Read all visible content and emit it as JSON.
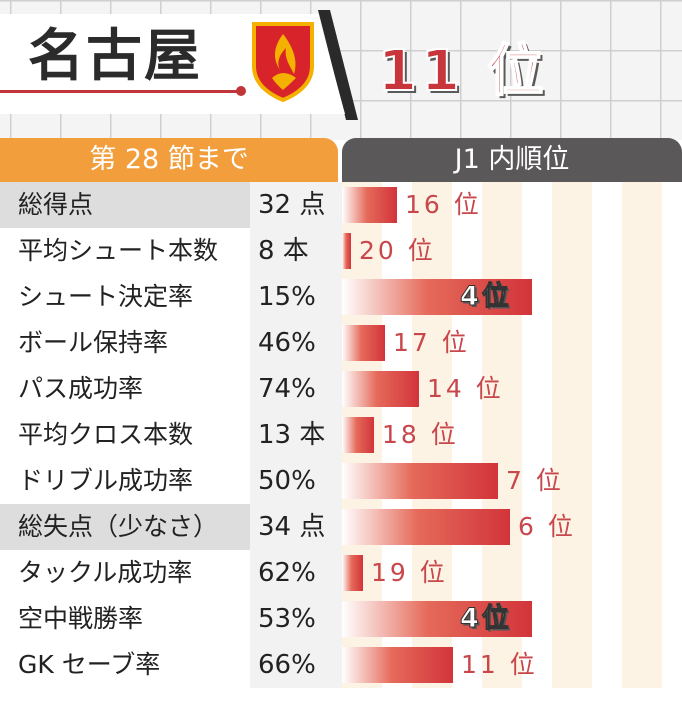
{
  "header": {
    "team_name": "名古屋",
    "overall_rank": "11 位"
  },
  "table": {
    "left_header": "第 28 節まで",
    "right_header": "J1 内順位"
  },
  "colors": {
    "accent_red": "#c8353b",
    "header_orange": "#f29e3c",
    "header_gray": "#5a5858"
  },
  "chart_data": {
    "type": "bar",
    "orientation": "horizontal",
    "title": "",
    "rank_unit": "位",
    "max_rank": 20,
    "categories": [
      "総得点",
      "平均シュート本数",
      "シュート決定率",
      "ボール保持率",
      "パス成功率",
      "平均クロス本数",
      "ドリブル成功率",
      "総失点（少なさ）",
      "タックル成功率",
      "空中戦勝率",
      "GK セーブ率"
    ],
    "stat_values": [
      "32 点",
      "8 本",
      "15%",
      "46%",
      "74%",
      "13 本",
      "50%",
      "34 点",
      "62%",
      "53%",
      "66%"
    ],
    "ranks": [
      16,
      20,
      4,
      17,
      14,
      18,
      7,
      6,
      19,
      4,
      11
    ],
    "rank_labels": [
      "16 位",
      "20 位",
      "4位",
      "17 位",
      "14 位",
      "18 位",
      "7 位",
      "6 位",
      "19 位",
      "4位",
      "11 位"
    ],
    "highlight_ranks": [
      2,
      9
    ],
    "shaded_labels": [
      0,
      7
    ]
  }
}
